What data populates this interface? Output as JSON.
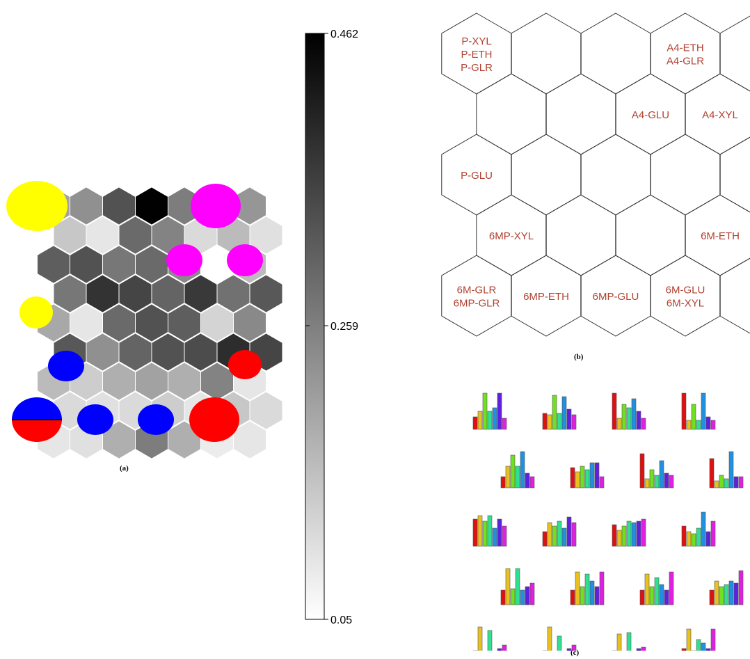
{
  "panel_a": {
    "caption": "(a)",
    "colorbar": {
      "max_label": "0.462",
      "mid_label": "0.259",
      "min_label": "0.05",
      "max": 0.462,
      "mid": 0.259,
      "min": 0.05
    },
    "grid_values": [
      [
        0.2,
        0.23,
        0.33,
        0.46,
        0.26,
        0.2,
        0.22
      ],
      [
        0.14,
        0.09,
        0.29,
        0.25,
        0.11,
        0.16,
        0.1
      ],
      [
        0.31,
        0.33,
        0.27,
        0.29,
        0.24,
        0.05,
        0.16
      ],
      [
        0.27,
        0.38,
        0.35,
        0.3,
        0.37,
        0.28,
        0.32
      ],
      [
        0.19,
        0.09,
        0.29,
        0.33,
        0.31,
        0.12,
        0.24
      ],
      [
        0.32,
        0.23,
        0.3,
        0.33,
        0.34,
        0.39,
        0.35
      ],
      [
        0.16,
        0.13,
        0.18,
        0.2,
        0.18,
        0.25,
        0.09
      ],
      [
        0.11,
        0.1,
        0.11,
        0.13,
        0.09,
        0.14,
        0.11
      ],
      [
        0.09,
        0.1,
        0.18,
        0.26,
        0.18,
        0.08,
        0.09
      ]
    ],
    "markers": [
      {
        "name": "yellow",
        "color": "#ffff00"
      },
      {
        "name": "magenta",
        "color": "#ff00ff"
      },
      {
        "name": "blue",
        "color": "#0000ff"
      },
      {
        "name": "red",
        "color": "#ff0000"
      }
    ]
  },
  "panel_b": {
    "caption": "(b)",
    "text_color": "#b04030",
    "cells": [
      {
        "row": 0,
        "col": 0,
        "lines": [
          "P-XYL",
          "P-ETH",
          "P-GLR"
        ]
      },
      {
        "row": 0,
        "col": 1,
        "lines": []
      },
      {
        "row": 0,
        "col": 2,
        "lines": []
      },
      {
        "row": 0,
        "col": 3,
        "lines": [
          "A4-ETH",
          "A4-GLR"
        ]
      },
      {
        "row": 1,
        "col": 0,
        "lines": []
      },
      {
        "row": 1,
        "col": 1,
        "lines": []
      },
      {
        "row": 1,
        "col": 2,
        "lines": [
          "A4-GLU"
        ]
      },
      {
        "row": 1,
        "col": 3,
        "lines": [
          "A4-XYL"
        ]
      },
      {
        "row": 2,
        "col": 0,
        "lines": [
          "P-GLU"
        ]
      },
      {
        "row": 2,
        "col": 1,
        "lines": []
      },
      {
        "row": 2,
        "col": 2,
        "lines": []
      },
      {
        "row": 2,
        "col": 3,
        "lines": []
      },
      {
        "row": 3,
        "col": 0,
        "lines": [
          "6MP-XYL"
        ]
      },
      {
        "row": 3,
        "col": 1,
        "lines": []
      },
      {
        "row": 3,
        "col": 2,
        "lines": []
      },
      {
        "row": 3,
        "col": 3,
        "lines": [
          "6M-ETH"
        ]
      },
      {
        "row": 4,
        "col": 0,
        "lines": [
          "6M-GLR",
          "6MP-GLR"
        ]
      },
      {
        "row": 4,
        "col": 1,
        "lines": [
          "6MP-ETH"
        ]
      },
      {
        "row": 4,
        "col": 2,
        "lines": [
          "6MP-GLU"
        ]
      },
      {
        "row": 4,
        "col": 3,
        "lines": [
          "6M-GLU",
          "6M-XYL"
        ]
      }
    ]
  },
  "panel_c": {
    "caption": "(c)",
    "bar_colors": [
      "#e01010",
      "#e8c020",
      "#70e020",
      "#30e090",
      "#2090e0",
      "#6020e0",
      "#e020e0"
    ],
    "max_value": 1.0,
    "glyphs": [
      [
        [
          0.35,
          0.5,
          1.0,
          0.5,
          0.6,
          1.0,
          0.3
        ],
        [
          0.45,
          0.4,
          0.95,
          0.45,
          0.9,
          0.55,
          0.4
        ],
        [
          1.0,
          0.3,
          0.7,
          0.6,
          0.85,
          0.5,
          0.3
        ],
        [
          1.0,
          0.25,
          0.7,
          0.25,
          1.0,
          0.35,
          0.25
        ]
      ],
      [
        [
          0.3,
          0.6,
          0.9,
          0.6,
          1.0,
          0.4,
          0.3
        ],
        [
          0.55,
          0.45,
          0.6,
          0.5,
          0.7,
          0.7,
          0.3
        ],
        [
          0.95,
          0.25,
          0.5,
          0.35,
          0.75,
          0.4,
          0.35
        ],
        [
          0.8,
          0.2,
          0.35,
          0.25,
          1.0,
          0.3,
          0.3
        ]
      ],
      [
        [
          0.75,
          0.85,
          0.7,
          0.85,
          0.5,
          0.75,
          0.55
        ],
        [
          0.4,
          0.65,
          0.55,
          0.7,
          0.5,
          0.8,
          0.65
        ],
        [
          0.6,
          0.45,
          0.55,
          0.7,
          0.65,
          0.7,
          0.75
        ],
        [
          0.55,
          0.4,
          0.35,
          0.5,
          0.95,
          0.4,
          0.7
        ]
      ],
      [
        [
          0.4,
          1.0,
          0.45,
          1.0,
          0.4,
          0.5,
          0.6
        ],
        [
          0.4,
          0.9,
          0.5,
          0.85,
          0.65,
          0.5,
          0.9
        ],
        [
          0.4,
          0.85,
          0.5,
          0.75,
          0.55,
          0.4,
          0.9
        ],
        [
          0.4,
          0.65,
          0.5,
          0.55,
          0.65,
          0.6,
          0.95
        ]
      ],
      [
        [
          0.35,
          1.0,
          0.3,
          0.9,
          0.3,
          0.4,
          0.5
        ],
        [
          0.35,
          1.0,
          0.3,
          0.75,
          0.3,
          0.4,
          0.5
        ],
        [
          0.35,
          0.8,
          0.3,
          0.85,
          0.3,
          0.4,
          0.45
        ],
        [
          0.4,
          0.95,
          0.35,
          0.65,
          0.55,
          0.4,
          0.95
        ]
      ]
    ]
  }
}
